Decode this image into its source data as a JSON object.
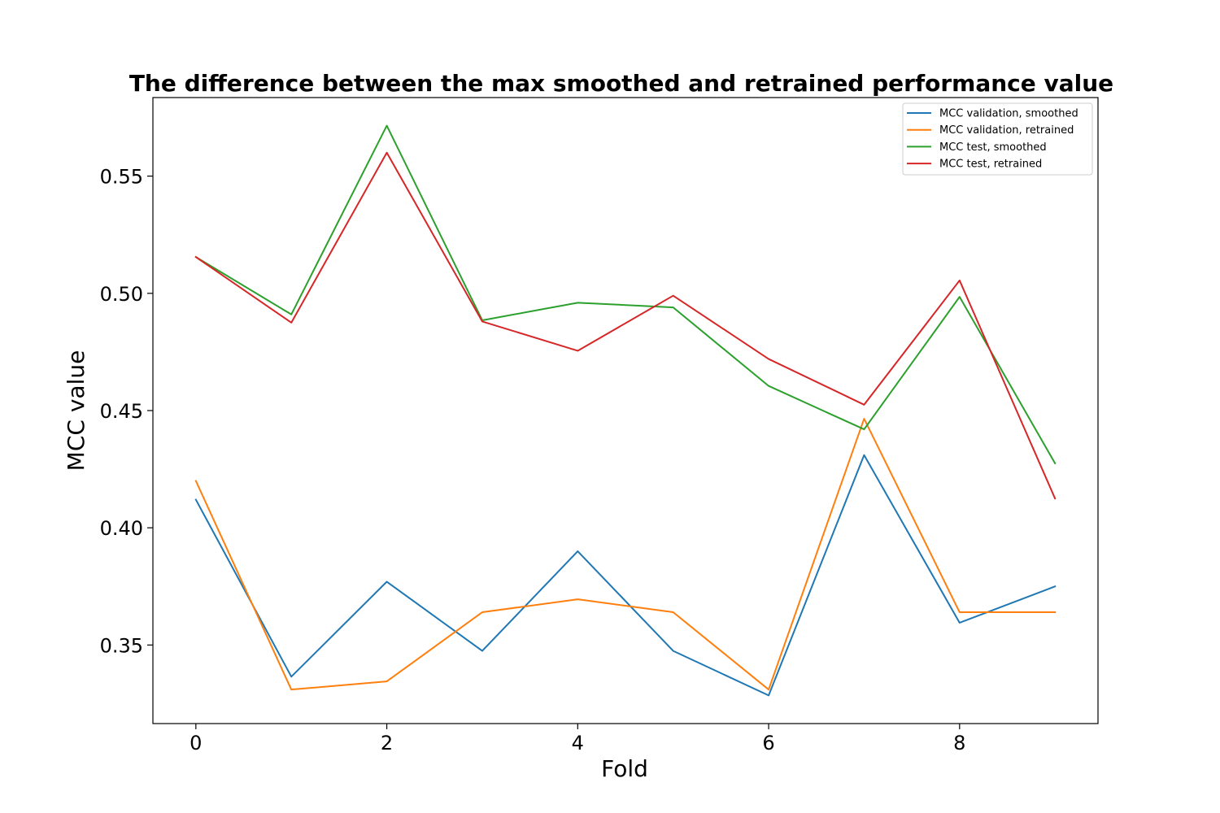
{
  "chart_data": {
    "type": "line",
    "title": "The difference between the max smoothed and retrained performance value",
    "xlabel": "Fold",
    "ylabel": "MCC value",
    "xlim": [
      -0.45,
      9.45
    ],
    "ylim": [
      0.3165,
      0.5835
    ],
    "x": [
      0,
      1,
      2,
      3,
      4,
      5,
      6,
      7,
      8,
      9
    ],
    "xticks": [
      0,
      2,
      4,
      6,
      8
    ],
    "xtick_labels": [
      "0",
      "2",
      "4",
      "6",
      "8"
    ],
    "yticks": [
      0.35,
      0.4,
      0.45,
      0.5,
      0.55
    ],
    "ytick_labels": [
      "0.35",
      "0.40",
      "0.45",
      "0.50",
      "0.55"
    ],
    "grid": false,
    "legend_position": "top-right",
    "series": [
      {
        "name": "MCC validation, smoothed",
        "color": "#1f77b4",
        "values": [
          0.412,
          0.3365,
          0.377,
          0.3475,
          0.39,
          0.3475,
          0.3285,
          0.431,
          0.3595,
          0.375
        ]
      },
      {
        "name": "MCC validation, retrained",
        "color": "#ff7f0e",
        "values": [
          0.42,
          0.331,
          0.3345,
          0.364,
          0.3695,
          0.364,
          0.331,
          0.4465,
          0.364,
          0.364
        ]
      },
      {
        "name": "MCC test, smoothed",
        "color": "#2ca02c",
        "values": [
          0.5155,
          0.491,
          0.5715,
          0.4885,
          0.496,
          0.494,
          0.4605,
          0.442,
          0.4985,
          0.4275
        ]
      },
      {
        "name": "MCC test, retrained",
        "color": "#d62728",
        "values": [
          0.5155,
          0.4875,
          0.56,
          0.488,
          0.4755,
          0.499,
          0.472,
          0.4525,
          0.5055,
          0.4125
        ]
      }
    ]
  }
}
